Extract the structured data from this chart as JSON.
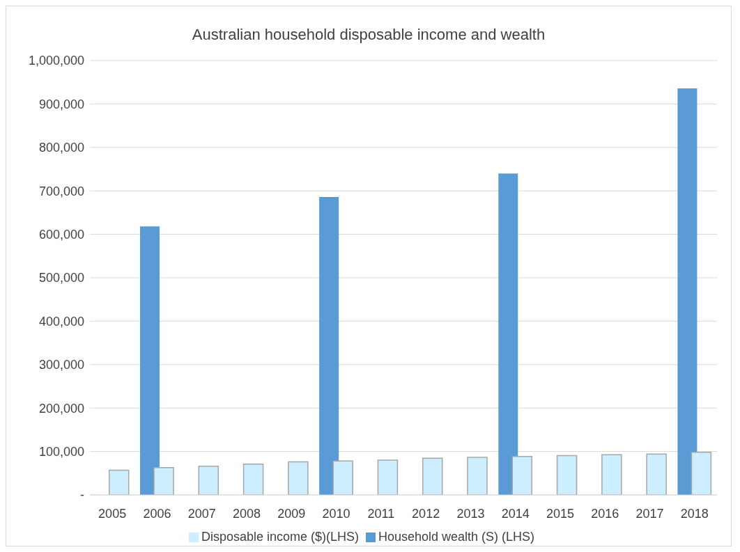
{
  "chart_data": {
    "type": "bar",
    "title": "Australian household disposable income and wealth",
    "categories": [
      "2005",
      "2006",
      "2007",
      "2008",
      "2009",
      "2010",
      "2011",
      "2012",
      "2013",
      "2014",
      "2015",
      "2016",
      "2017",
      "2018"
    ],
    "series": [
      {
        "name": "Household wealth (S) (LHS)",
        "color": "#5b9bd5",
        "values": [
          null,
          618000,
          null,
          null,
          null,
          686000,
          null,
          null,
          null,
          740000,
          null,
          null,
          null,
          936000
        ]
      },
      {
        "name": "Disposable income ($)(LHS)",
        "color": "#cceeff",
        "values": [
          57000,
          63000,
          66000,
          71000,
          76000,
          78000,
          80000,
          84500,
          86500,
          88500,
          90500,
          92500,
          94000,
          98000
        ]
      }
    ],
    "ylim": [
      0,
      1000000
    ],
    "yticks": [
      {
        "value": 0,
        "label": "-"
      },
      {
        "value": 100000,
        "label": "100,000"
      },
      {
        "value": 200000,
        "label": "200,000"
      },
      {
        "value": 300000,
        "label": "300,000"
      },
      {
        "value": 400000,
        "label": "400,000"
      },
      {
        "value": 500000,
        "label": "500,000"
      },
      {
        "value": 600000,
        "label": "600,000"
      },
      {
        "value": 700000,
        "label": "700,000"
      },
      {
        "value": 800000,
        "label": "800,000"
      },
      {
        "value": 900000,
        "label": "900,000"
      },
      {
        "value": 1000000,
        "label": "1,000,000"
      }
    ],
    "grid": "y",
    "legend": "bottom"
  }
}
